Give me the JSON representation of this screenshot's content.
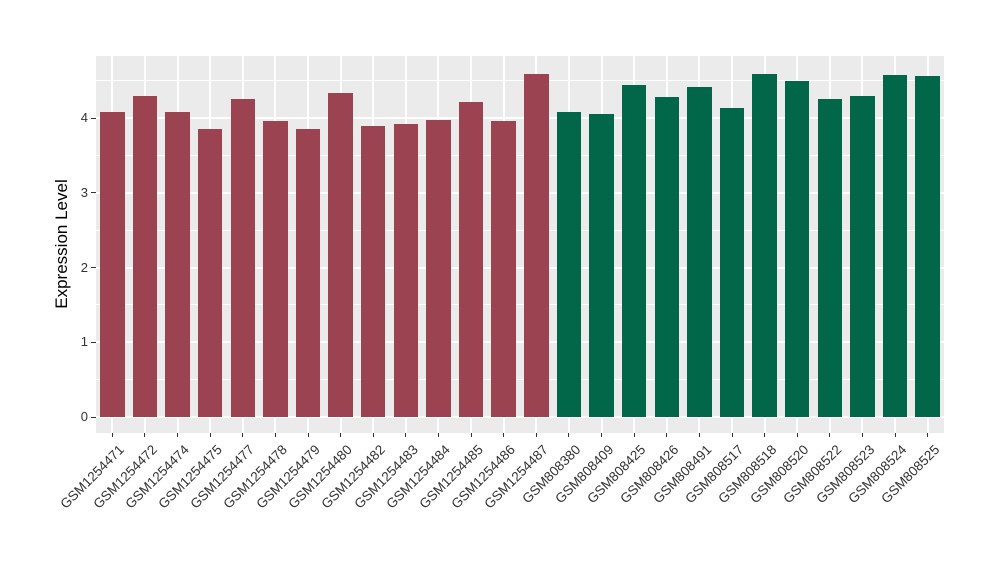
{
  "figure": {
    "background": "#FFFFFF",
    "panel_background": "#EBEBEB",
    "grid_color": "#FFFFFF",
    "axis_text_color": "#333333",
    "axis_title_color": "#000000",
    "tick_color": "#333333"
  },
  "chart_data": {
    "type": "bar",
    "title": "",
    "xlabel": "",
    "ylabel": "Expression Level",
    "ylim": [
      -0.214,
      4.83
    ],
    "yticks": [
      0,
      1,
      2,
      3,
      4
    ],
    "yticks_minor": [
      0.5,
      1.5,
      2.5,
      3.5,
      4.5
    ],
    "grid": "on",
    "legend": "none",
    "bar_width_fraction": 0.75,
    "group_colors": {
      "group1": "#9C4352",
      "group2": "#016748"
    },
    "categories": [
      "GSM1254471",
      "GSM1254472",
      "GSM1254474",
      "GSM1254475",
      "GSM1254477",
      "GSM1254478",
      "GSM1254479",
      "GSM1254480",
      "GSM1254482",
      "GSM1254483",
      "GSM1254484",
      "GSM1254485",
      "GSM1254486",
      "GSM1254487",
      "GSM808380",
      "GSM808409",
      "GSM808425",
      "GSM808426",
      "GSM808491",
      "GSM808517",
      "GSM808518",
      "GSM808520",
      "GSM808522",
      "GSM808523",
      "GSM808524",
      "GSM808525"
    ],
    "groups": [
      "group1",
      "group1",
      "group1",
      "group1",
      "group1",
      "group1",
      "group1",
      "group1",
      "group1",
      "group1",
      "group1",
      "group1",
      "group1",
      "group1",
      "group2",
      "group2",
      "group2",
      "group2",
      "group2",
      "group2",
      "group2",
      "group2",
      "group2",
      "group2",
      "group2",
      "group2"
    ],
    "values": [
      4.08,
      4.29,
      4.08,
      3.86,
      4.26,
      3.96,
      3.86,
      4.33,
      3.89,
      3.92,
      3.97,
      4.21,
      3.96,
      4.59,
      4.08,
      4.06,
      4.44,
      4.28,
      4.41,
      4.13,
      4.59,
      4.5,
      4.26,
      4.3,
      4.58,
      4.56
    ]
  }
}
